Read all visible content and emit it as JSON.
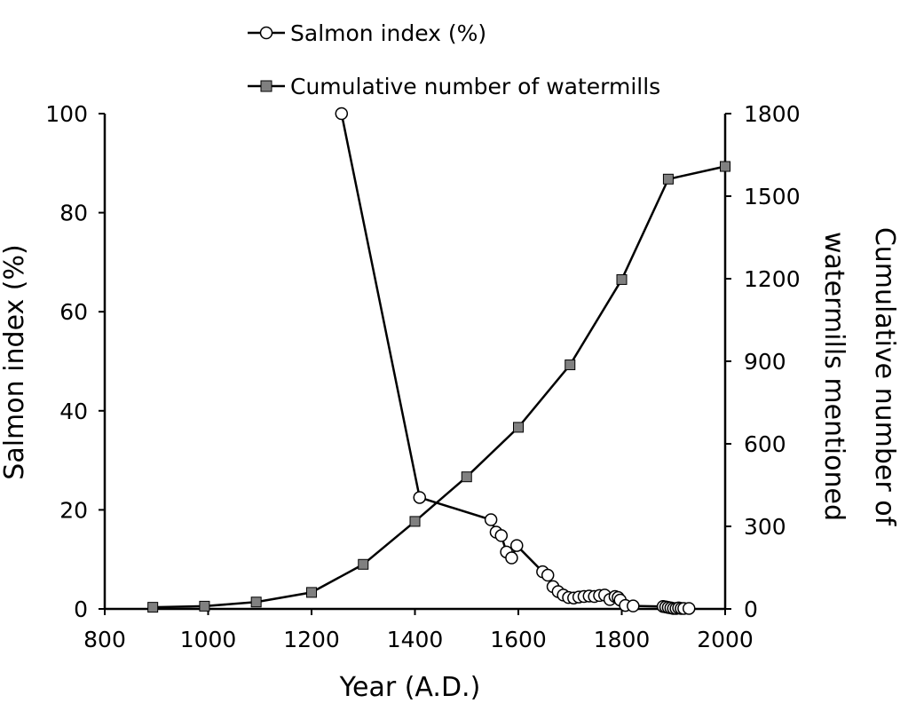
{
  "chart_data": {
    "type": "line",
    "xlabel": "Year (A.D.)",
    "ylabel_left": "Salmon index (%)",
    "ylabel_right_lines": [
      "Cumulative number of",
      "watermills mentioned"
    ],
    "xlim": [
      800,
      2000
    ],
    "ylim_left": [
      0,
      100
    ],
    "ylim_right": [
      0,
      1800
    ],
    "x_ticks": [
      "800",
      "1000",
      "1200",
      "1400",
      "1600",
      "1800",
      "2000"
    ],
    "y_ticks_left": [
      "0",
      "20",
      "40",
      "60",
      "80",
      "100"
    ],
    "y_ticks_right": [
      "0",
      "300",
      "600",
      "900",
      "1200",
      "1500",
      "1800"
    ],
    "grid": false,
    "legend_position": "top",
    "series": [
      {
        "name": "Salmon index (%)",
        "axis": "left",
        "marker": "circle-open",
        "x": [
          1258,
          1409,
          1547,
          1557,
          1567,
          1577,
          1587,
          1597,
          1647,
          1657,
          1667,
          1677,
          1687,
          1697,
          1707,
          1717,
          1727,
          1737,
          1747,
          1757,
          1767,
          1777,
          1787,
          1793,
          1797,
          1807,
          1822,
          1880,
          1885,
          1890,
          1895,
          1900,
          1905,
          1910,
          1915,
          1920,
          1930
        ],
        "values": [
          100,
          22.5,
          18,
          15.5,
          14.8,
          11.5,
          10.3,
          12.8,
          7.5,
          6.8,
          4.5,
          3.5,
          2.8,
          2.3,
          2.2,
          2.4,
          2.5,
          2.6,
          2.5,
          2.7,
          2.8,
          1.9,
          2.5,
          2.3,
          1.8,
          0.7,
          0.6,
          0.5,
          0.4,
          0.3,
          0.2,
          0.1,
          0.1,
          0.2,
          0.1,
          0.1,
          0.1
        ]
      },
      {
        "name": "Cumulative number of watermills",
        "axis": "right",
        "marker": "square-filled",
        "x": [
          893,
          993,
          1093,
          1200,
          1300,
          1400,
          1500,
          1600,
          1700,
          1800,
          1890,
          2000
        ],
        "values": [
          6,
          10,
          25,
          60,
          162,
          318,
          480,
          660,
          887,
          1197,
          1562,
          1608
        ]
      }
    ]
  }
}
